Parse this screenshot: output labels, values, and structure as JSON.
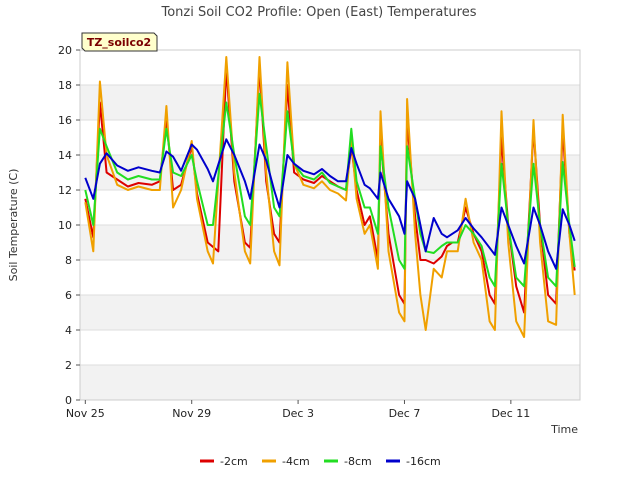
{
  "chart_data": {
    "type": "line",
    "title": "Tonzi Soil CO2 Profile: Open (East) Temperatures",
    "xlabel": "Time",
    "ylabel": "Soil Temperature (C)",
    "site_label": "TZ_soilco2",
    "xlim": [
      -0.2,
      18.6
    ],
    "ylim": [
      0,
      20
    ],
    "y_ticks": [
      0,
      2,
      4,
      6,
      8,
      10,
      12,
      14,
      16,
      18,
      20
    ],
    "x_ticks": [
      {
        "value": 0,
        "label": "Nov 25"
      },
      {
        "value": 4,
        "label": "Nov 29"
      },
      {
        "value": 8,
        "label": "Dec 3"
      },
      {
        "value": 12,
        "label": "Dec 7"
      },
      {
        "value": 16,
        "label": "Dec 11"
      }
    ],
    "x_units": "days since Nov 25",
    "grid": true,
    "legend_position": "bottom",
    "series": [
      {
        "name": "-2cm",
        "color": "#dd0000",
        "points": [
          [
            0,
            11.5
          ],
          [
            0.3,
            9.3
          ],
          [
            0.55,
            17.0
          ],
          [
            0.8,
            13.0
          ],
          [
            1.2,
            12.6
          ],
          [
            1.6,
            12.2
          ],
          [
            2.0,
            12.4
          ],
          [
            2.5,
            12.3
          ],
          [
            2.8,
            12.5
          ],
          [
            3.05,
            16.0
          ],
          [
            3.3,
            12.0
          ],
          [
            3.6,
            12.3
          ],
          [
            4.0,
            14.5
          ],
          [
            4.2,
            11.8
          ],
          [
            4.6,
            9.0
          ],
          [
            5.0,
            8.5
          ],
          [
            5.3,
            19.0
          ],
          [
            5.6,
            12.5
          ],
          [
            6.0,
            9.0
          ],
          [
            6.2,
            8.7
          ],
          [
            6.55,
            19.0
          ],
          [
            6.8,
            12.5
          ],
          [
            7.1,
            9.5
          ],
          [
            7.3,
            9.0
          ],
          [
            7.6,
            18.0
          ],
          [
            7.85,
            13.0
          ],
          [
            8.2,
            12.6
          ],
          [
            8.6,
            12.4
          ],
          [
            8.9,
            12.8
          ],
          [
            9.2,
            12.5
          ],
          [
            9.5,
            12.2
          ],
          [
            9.8,
            12.0
          ],
          [
            10.0,
            14.5
          ],
          [
            10.2,
            12.0
          ],
          [
            10.5,
            10.0
          ],
          [
            10.7,
            10.5
          ],
          [
            11.0,
            8.0
          ],
          [
            11.1,
            15.0
          ],
          [
            11.4,
            9.5
          ],
          [
            11.8,
            6.0
          ],
          [
            12.0,
            5.5
          ],
          [
            12.1,
            16.0
          ],
          [
            12.4,
            10.5
          ],
          [
            12.6,
            8.0
          ],
          [
            12.8,
            8.0
          ],
          [
            13.1,
            7.8
          ],
          [
            13.4,
            8.2
          ],
          [
            13.6,
            8.8
          ],
          [
            13.8,
            9.0
          ],
          [
            14.0,
            9.0
          ],
          [
            14.3,
            11.0
          ],
          [
            14.6,
            9.5
          ],
          [
            14.9,
            8.5
          ],
          [
            15.2,
            6.0
          ],
          [
            15.4,
            5.5
          ],
          [
            15.65,
            15.0
          ],
          [
            15.9,
            10.0
          ],
          [
            16.2,
            6.5
          ],
          [
            16.5,
            5.0
          ],
          [
            16.85,
            15.5
          ],
          [
            17.1,
            10.0
          ],
          [
            17.4,
            6.0
          ],
          [
            17.7,
            5.5
          ],
          [
            17.95,
            15.5
          ],
          [
            18.2,
            9.5
          ],
          [
            18.4,
            7.4
          ]
        ]
      },
      {
        "name": "-4cm",
        "color": "#f0a000",
        "points": [
          [
            0,
            11.3
          ],
          [
            0.3,
            8.5
          ],
          [
            0.55,
            18.2
          ],
          [
            0.8,
            14.0
          ],
          [
            1.2,
            12.3
          ],
          [
            1.6,
            12.0
          ],
          [
            2.0,
            12.2
          ],
          [
            2.5,
            12.0
          ],
          [
            2.8,
            12.0
          ],
          [
            3.05,
            16.8
          ],
          [
            3.3,
            11.0
          ],
          [
            3.6,
            12.0
          ],
          [
            4.0,
            14.8
          ],
          [
            4.2,
            11.5
          ],
          [
            4.6,
            8.5
          ],
          [
            4.8,
            7.8
          ],
          [
            5.3,
            19.6
          ],
          [
            5.6,
            13.0
          ],
          [
            6.0,
            8.5
          ],
          [
            6.2,
            7.8
          ],
          [
            6.55,
            19.6
          ],
          [
            6.8,
            13.0
          ],
          [
            7.1,
            8.5
          ],
          [
            7.3,
            7.7
          ],
          [
            7.6,
            19.3
          ],
          [
            7.85,
            13.5
          ],
          [
            8.2,
            12.3
          ],
          [
            8.6,
            12.1
          ],
          [
            8.9,
            12.5
          ],
          [
            9.2,
            12.0
          ],
          [
            9.5,
            11.8
          ],
          [
            9.8,
            11.4
          ],
          [
            10.0,
            15.0
          ],
          [
            10.2,
            11.5
          ],
          [
            10.5,
            9.5
          ],
          [
            10.7,
            10.0
          ],
          [
            11.0,
            7.5
          ],
          [
            11.1,
            16.5
          ],
          [
            11.4,
            8.5
          ],
          [
            11.8,
            5.0
          ],
          [
            12.0,
            4.5
          ],
          [
            12.1,
            17.2
          ],
          [
            12.4,
            9.5
          ],
          [
            12.6,
            6.0
          ],
          [
            12.8,
            4.0
          ],
          [
            13.1,
            7.5
          ],
          [
            13.4,
            7.0
          ],
          [
            13.6,
            8.5
          ],
          [
            13.8,
            8.5
          ],
          [
            14.0,
            8.5
          ],
          [
            14.3,
            11.5
          ],
          [
            14.6,
            9.0
          ],
          [
            14.9,
            8.0
          ],
          [
            15.2,
            4.5
          ],
          [
            15.4,
            4.0
          ],
          [
            15.65,
            16.5
          ],
          [
            15.9,
            9.0
          ],
          [
            16.2,
            4.5
          ],
          [
            16.5,
            3.6
          ],
          [
            16.85,
            16.0
          ],
          [
            17.1,
            9.0
          ],
          [
            17.4,
            4.5
          ],
          [
            17.7,
            4.3
          ],
          [
            17.95,
            16.3
          ],
          [
            18.2,
            9.5
          ],
          [
            18.4,
            6.0
          ]
        ]
      },
      {
        "name": "-8cm",
        "color": "#22dd22",
        "points": [
          [
            0,
            12.0
          ],
          [
            0.3,
            10.0
          ],
          [
            0.55,
            15.5
          ],
          [
            0.8,
            14.5
          ],
          [
            1.2,
            13.0
          ],
          [
            1.6,
            12.6
          ],
          [
            2.0,
            12.8
          ],
          [
            2.5,
            12.6
          ],
          [
            2.8,
            12.6
          ],
          [
            3.05,
            15.5
          ],
          [
            3.3,
            13.0
          ],
          [
            3.6,
            12.8
          ],
          [
            4.0,
            14.0
          ],
          [
            4.2,
            12.5
          ],
          [
            4.6,
            10.0
          ],
          [
            4.8,
            10.0
          ],
          [
            5.3,
            17.0
          ],
          [
            5.6,
            14.0
          ],
          [
            6.0,
            10.5
          ],
          [
            6.2,
            10.0
          ],
          [
            6.55,
            17.5
          ],
          [
            6.8,
            14.5
          ],
          [
            7.1,
            11.0
          ],
          [
            7.3,
            10.5
          ],
          [
            7.6,
            16.5
          ],
          [
            7.85,
            13.5
          ],
          [
            8.2,
            12.8
          ],
          [
            8.6,
            12.6
          ],
          [
            8.9,
            13.0
          ],
          [
            9.2,
            12.4
          ],
          [
            9.5,
            12.2
          ],
          [
            9.8,
            12.0
          ],
          [
            10.0,
            15.5
          ],
          [
            10.2,
            12.5
          ],
          [
            10.5,
            11.0
          ],
          [
            10.7,
            11.0
          ],
          [
            11.0,
            9.5
          ],
          [
            11.1,
            14.5
          ],
          [
            11.4,
            11.0
          ],
          [
            11.8,
            8.0
          ],
          [
            12.0,
            7.5
          ],
          [
            12.1,
            14.5
          ],
          [
            12.4,
            11.5
          ],
          [
            12.6,
            9.5
          ],
          [
            12.8,
            8.5
          ],
          [
            13.1,
            8.4
          ],
          [
            13.4,
            8.8
          ],
          [
            13.6,
            9.0
          ],
          [
            13.8,
            9.0
          ],
          [
            14.0,
            9.0
          ],
          [
            14.3,
            10.0
          ],
          [
            14.6,
            9.5
          ],
          [
            14.9,
            8.8
          ],
          [
            15.2,
            7.0
          ],
          [
            15.4,
            6.5
          ],
          [
            15.65,
            13.5
          ],
          [
            15.9,
            10.0
          ],
          [
            16.2,
            7.0
          ],
          [
            16.5,
            6.5
          ],
          [
            16.85,
            13.5
          ],
          [
            17.1,
            10.0
          ],
          [
            17.4,
            7.0
          ],
          [
            17.7,
            6.5
          ],
          [
            17.95,
            13.6
          ],
          [
            18.2,
            10.0
          ],
          [
            18.4,
            7.6
          ]
        ]
      },
      {
        "name": "-16cm",
        "color": "#0000cc",
        "points": [
          [
            0,
            12.7
          ],
          [
            0.3,
            11.5
          ],
          [
            0.55,
            13.5
          ],
          [
            0.8,
            14.1
          ],
          [
            1.2,
            13.4
          ],
          [
            1.6,
            13.1
          ],
          [
            2.0,
            13.3
          ],
          [
            2.5,
            13.1
          ],
          [
            2.8,
            13.0
          ],
          [
            3.05,
            14.2
          ],
          [
            3.3,
            13.9
          ],
          [
            3.6,
            13.1
          ],
          [
            4.0,
            14.6
          ],
          [
            4.2,
            14.3
          ],
          [
            4.6,
            13.2
          ],
          [
            4.8,
            12.5
          ],
          [
            5.3,
            14.9
          ],
          [
            5.6,
            14.0
          ],
          [
            6.0,
            12.5
          ],
          [
            6.2,
            11.5
          ],
          [
            6.55,
            14.6
          ],
          [
            6.8,
            13.7
          ],
          [
            7.1,
            12.0
          ],
          [
            7.3,
            11.0
          ],
          [
            7.6,
            14.0
          ],
          [
            7.85,
            13.5
          ],
          [
            8.2,
            13.1
          ],
          [
            8.6,
            12.9
          ],
          [
            8.9,
            13.2
          ],
          [
            9.2,
            12.8
          ],
          [
            9.5,
            12.5
          ],
          [
            9.8,
            12.5
          ],
          [
            10.0,
            14.4
          ],
          [
            10.2,
            13.5
          ],
          [
            10.5,
            12.3
          ],
          [
            10.7,
            12.1
          ],
          [
            11.0,
            11.5
          ],
          [
            11.1,
            13.0
          ],
          [
            11.4,
            11.5
          ],
          [
            11.8,
            10.5
          ],
          [
            12.0,
            9.5
          ],
          [
            12.1,
            12.5
          ],
          [
            12.4,
            11.5
          ],
          [
            12.6,
            10.0
          ],
          [
            12.8,
            8.5
          ],
          [
            13.1,
            10.4
          ],
          [
            13.4,
            9.5
          ],
          [
            13.6,
            9.3
          ],
          [
            13.8,
            9.5
          ],
          [
            14.0,
            9.7
          ],
          [
            14.3,
            10.4
          ],
          [
            14.6,
            9.8
          ],
          [
            14.9,
            9.3
          ],
          [
            15.2,
            8.7
          ],
          [
            15.4,
            8.3
          ],
          [
            15.65,
            11.0
          ],
          [
            15.9,
            10.0
          ],
          [
            16.2,
            8.8
          ],
          [
            16.5,
            7.8
          ],
          [
            16.85,
            11.0
          ],
          [
            17.1,
            10.0
          ],
          [
            17.4,
            8.5
          ],
          [
            17.7,
            7.5
          ],
          [
            17.95,
            10.9
          ],
          [
            18.2,
            10.0
          ],
          [
            18.4,
            9.1
          ]
        ]
      }
    ]
  }
}
